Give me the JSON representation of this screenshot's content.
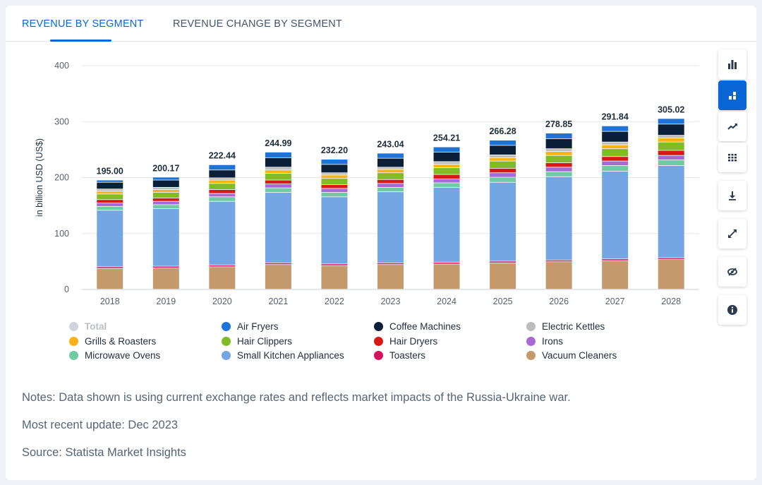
{
  "tabs": [
    "REVENUE BY SEGMENT",
    "REVENUE CHANGE BY SEGMENT"
  ],
  "toolbar_icons": [
    "bar-chart-icon",
    "stacked-bar-chart-icon",
    "trend-line-icon",
    "table-icon",
    "download-icon",
    "expand-icon",
    "hide-icon",
    "info-icon"
  ],
  "chart_data": {
    "type": "bar",
    "stacked": true,
    "ylabel": "in billion USD (US$)",
    "ylim": [
      0,
      400
    ],
    "yticks": [
      0,
      100,
      200,
      300,
      400
    ],
    "categories": [
      "2018",
      "2019",
      "2020",
      "2021",
      "2022",
      "2023",
      "2024",
      "2025",
      "2026",
      "2027",
      "2028"
    ],
    "totals": [
      195.0,
      200.17,
      222.44,
      244.99,
      232.2,
      243.04,
      254.21,
      266.28,
      278.85,
      291.84,
      305.02
    ],
    "total_labels": [
      "195.00",
      "200.17",
      "222.44",
      "244.99",
      "232.20",
      "243.04",
      "254.21",
      "266.28",
      "278.85",
      "291.84",
      "305.02"
    ],
    "series": [
      {
        "name": "Vacuum Cleaners",
        "color": "#c49a6c",
        "values": [
          37,
          38,
          40,
          44,
          42,
          44,
          45,
          47,
          49,
          51,
          53
        ]
      },
      {
        "name": "Toasters",
        "color": "#d6105f",
        "values": [
          3,
          3,
          3,
          3,
          3,
          3,
          3,
          3,
          3,
          3,
          3
        ]
      },
      {
        "name": "Small Kitchen Appliances",
        "color": "#74a6e4",
        "values": [
          101,
          103,
          114,
          126,
          120,
          127,
          134,
          141,
          149,
          157,
          165
        ]
      },
      {
        "name": "Microwave Ovens",
        "color": "#6fcba1",
        "values": [
          7,
          7,
          8,
          8,
          8,
          8,
          8,
          9,
          9,
          10,
          10
        ]
      },
      {
        "name": "Irons",
        "color": "#a869d6",
        "values": [
          6,
          6,
          6,
          7,
          7,
          7,
          7,
          8,
          8,
          8,
          8
        ]
      },
      {
        "name": "Hair Dryers",
        "color": "#d81a16",
        "values": [
          6,
          6,
          7,
          7,
          7,
          7,
          8,
          8,
          8,
          8,
          9
        ]
      },
      {
        "name": "Hair Clippers",
        "color": "#7fbc26",
        "values": [
          10,
          10,
          11,
          12,
          11,
          12,
          12,
          13,
          13,
          14,
          15
        ]
      },
      {
        "name": "Grills & Roasters",
        "color": "#f7b315",
        "values": [
          5,
          5,
          6,
          6,
          6,
          6,
          6,
          6,
          7,
          7,
          7
        ]
      },
      {
        "name": "Electric Kettles",
        "color": "#bdbdbd",
        "values": [
          4,
          4,
          4,
          5,
          4,
          4,
          5,
          5,
          5,
          5,
          5
        ]
      },
      {
        "name": "Coffee Machines",
        "color": "#0c1f38",
        "values": [
          12,
          13,
          14,
          17,
          15,
          16,
          17,
          17,
          18,
          19,
          20
        ]
      },
      {
        "name": "Air Fryers",
        "color": "#1e73d8",
        "values": [
          4.0,
          5.17,
          9.44,
          9.99,
          9.2,
          9.04,
          9.21,
          9.28,
          9.85,
          9.84,
          10.02
        ]
      }
    ]
  },
  "legend": [
    {
      "name": "Total",
      "color": "#d0d4da",
      "disabled": true
    },
    {
      "name": "Air Fryers",
      "color": "#1e73d8"
    },
    {
      "name": "Coffee Machines",
      "color": "#0c1f38"
    },
    {
      "name": "Electric Kettles",
      "color": "#bdbdbd"
    },
    {
      "name": "Grills & Roasters",
      "color": "#f7b315"
    },
    {
      "name": "Hair Clippers",
      "color": "#7fbc26"
    },
    {
      "name": "Hair Dryers",
      "color": "#d81a16"
    },
    {
      "name": "Irons",
      "color": "#a869d6"
    },
    {
      "name": "Microwave Ovens",
      "color": "#6fcba1"
    },
    {
      "name": "Small Kitchen Appliances",
      "color": "#74a6e4"
    },
    {
      "name": "Toasters",
      "color": "#d6105f"
    },
    {
      "name": "Vacuum Cleaners",
      "color": "#c49a6c"
    }
  ],
  "notes": {
    "note": "Notes: Data shown is using current exchange rates and reflects market impacts of the Russia-Ukraine war.",
    "update": "Most recent update: Dec 2023",
    "source": "Source: Statista Market Insights"
  }
}
